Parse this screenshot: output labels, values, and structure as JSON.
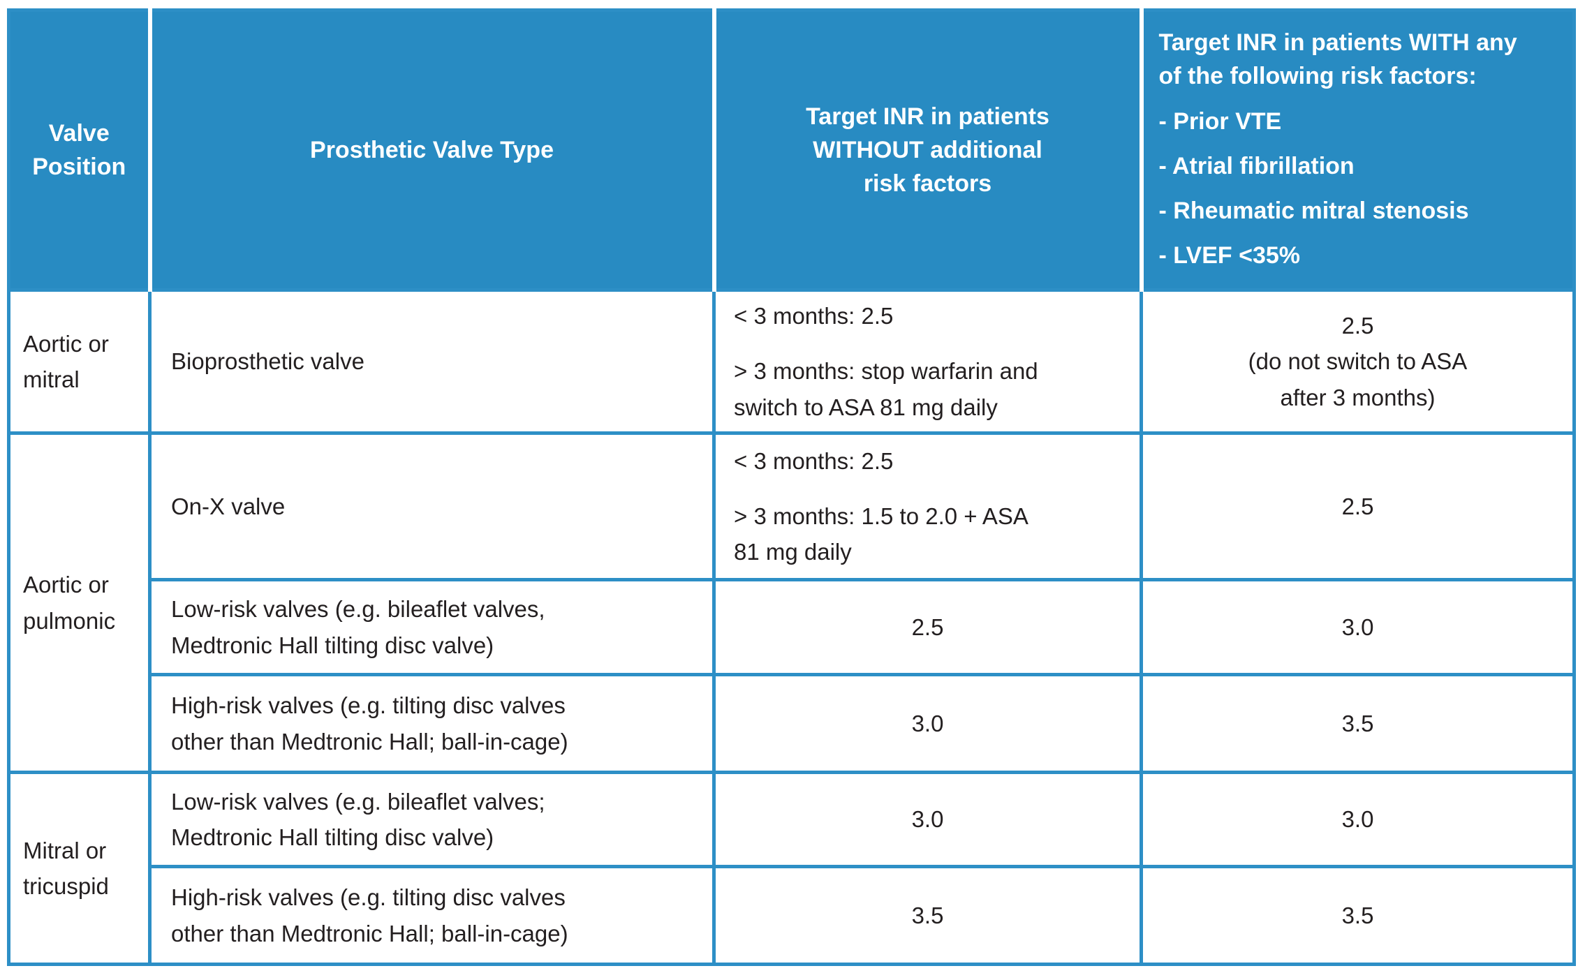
{
  "colors": {
    "header_bg": "#288bc2",
    "border": "#2d8fc6",
    "header_text": "#ffffff",
    "text": "#231f20",
    "page_bg": "#ffffff"
  },
  "table": {
    "headers": {
      "valve_position": "Valve\nPosition",
      "valve_type": "Prosthetic Valve Type",
      "inr_without": "Target INR in patients\nWITHOUT additional\nrisk factors",
      "inr_with_title": "Target INR in patients WITH any\nof the following risk factors:",
      "risk_factors": [
        "- Prior VTE",
        "- Atrial fibrillation",
        "- Rheumatic mitral stenosis",
        "- LVEF <35%"
      ]
    },
    "rows": [
      {
        "position": "Aortic or\nmitral",
        "valve_type": "Bioprosthetic valve",
        "inr_without_line1": "< 3 months: 2.5",
        "inr_without_line2": "> 3 months: stop warfarin and\nswitch to ASA 81 mg daily",
        "inr_with": "2.5\n(do not switch to ASA\nafter 3 months)"
      },
      {
        "position": "Aortic or\npulmonic",
        "valve_type": "On-X valve",
        "inr_without_line1": "< 3 months: 2.5",
        "inr_without_line2": "> 3 months: 1.5 to 2.0 + ASA\n81 mg daily",
        "inr_with": "2.5"
      },
      {
        "valve_type": "Low-risk valves (e.g. bileaflet valves,\nMedtronic Hall tilting disc valve)",
        "inr_without": "2.5",
        "inr_with": "3.0"
      },
      {
        "valve_type": "High-risk valves (e.g. tilting disc valves\nother than Medtronic Hall; ball-in-cage)",
        "inr_without": "3.0",
        "inr_with": "3.5"
      },
      {
        "position": "Mitral or\ntricuspid",
        "valve_type": "Low-risk valves (e.g. bileaflet valves;\nMedtronic Hall tilting disc valve)",
        "inr_without": "3.0",
        "inr_with": "3.0"
      },
      {
        "valve_type": "High-risk valves (e.g. tilting disc valves\nother than Medtronic Hall; ball-in-cage)",
        "inr_without": "3.5",
        "inr_with": "3.5"
      }
    ]
  }
}
